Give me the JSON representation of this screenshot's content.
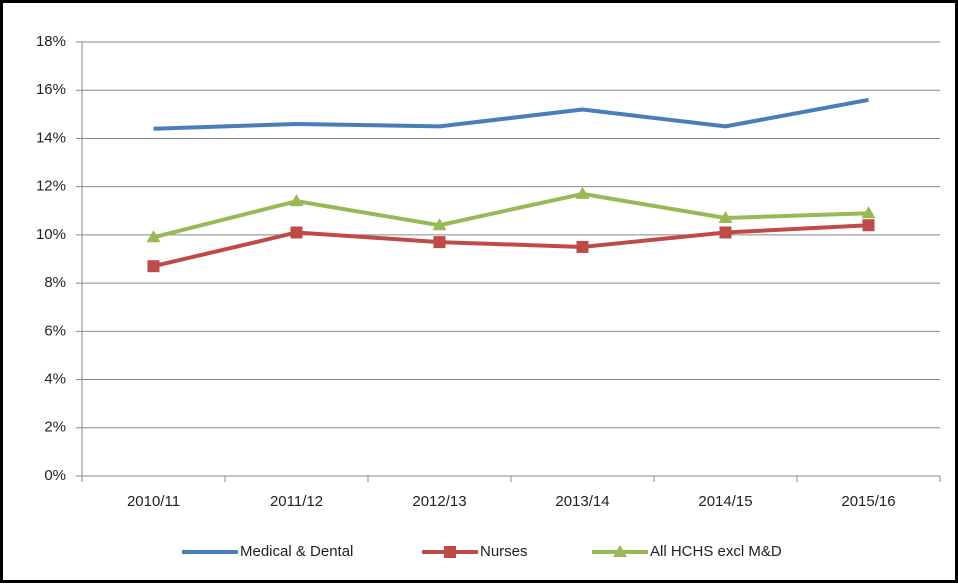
{
  "chart_data": {
    "type": "line",
    "categories": [
      "2010/11",
      "2011/12",
      "2012/13",
      "2013/14",
      "2014/15",
      "2015/16"
    ],
    "series": [
      {
        "name": "Medical & Dental",
        "color": "#4a7ebb",
        "marker": "none",
        "values": [
          14.4,
          14.6,
          14.5,
          15.2,
          14.5,
          15.6
        ]
      },
      {
        "name": "Nurses",
        "color": "#be4b48",
        "marker": "square",
        "values": [
          8.7,
          10.1,
          9.7,
          9.5,
          10.1,
          10.4
        ]
      },
      {
        "name": "All HCHS excl M&D",
        "color": "#98b954",
        "marker": "triangle",
        "values": [
          9.9,
          11.4,
          10.4,
          11.7,
          10.7,
          10.9
        ]
      }
    ],
    "ylim": [
      0,
      18
    ],
    "yticks": [
      {
        "value": 0,
        "label": "0%"
      },
      {
        "value": 2,
        "label": "2%"
      },
      {
        "value": 4,
        "label": "4%"
      },
      {
        "value": 6,
        "label": "6%"
      },
      {
        "value": 8,
        "label": "8%"
      },
      {
        "value": 10,
        "label": "10%"
      },
      {
        "value": 12,
        "label": "12%"
      },
      {
        "value": 14,
        "label": "14%"
      },
      {
        "value": 16,
        "label": "16%"
      },
      {
        "value": 18,
        "label": "18%"
      }
    ],
    "grid": true,
    "legend": "bottom"
  }
}
